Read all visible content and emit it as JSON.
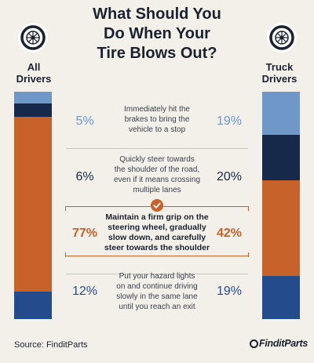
{
  "title_lines": [
    "What Should You",
    "Do When Your",
    "Tire Blows Out?"
  ],
  "left_group": {
    "lines": [
      "All",
      "Drivers"
    ],
    "icon": "tire-icon"
  },
  "right_group": {
    "lines": [
      "Truck",
      "Drivers"
    ],
    "icon": "tire-icon"
  },
  "chart_data": {
    "type": "bar",
    "stacked": true,
    "title": "What Should You Do When Your Tire Blows Out?",
    "categories": [
      "All Drivers",
      "Truck Drivers"
    ],
    "series": [
      {
        "name": "Immediately hit the brakes to bring the vehicle to a stop",
        "values": [
          5,
          19
        ],
        "color": "#6f98c9"
      },
      {
        "name": "Quickly steer towards the shoulder of the road, even if it means crossing multiple lanes",
        "values": [
          6,
          20
        ],
        "color": "#16294a"
      },
      {
        "name": "Maintain a firm grip on the steering wheel, gradually slow down, and carefully steer towards the shoulder",
        "values": [
          77,
          42
        ],
        "color": "#c7622a"
      },
      {
        "name": "Put your hazard lights on and continue driving slowly in the same lane until you reach an exit",
        "values": [
          12,
          19
        ],
        "color": "#244c8d"
      }
    ],
    "rows": [
      {
        "left_label": "5%",
        "right_label": "19%",
        "lines": [
          "Immediately hit the",
          "brakes to bring the",
          "vehicle to a stop"
        ],
        "highlight": false
      },
      {
        "left_label": "6%",
        "right_label": "20%",
        "lines": [
          "Quickly steer towards",
          "the shoulder of the road,",
          "even if it means crossing",
          "multiple lanes"
        ],
        "highlight": false
      },
      {
        "left_label": "77%",
        "right_label": "42%",
        "lines": [
          "Maintain a firm grip on the",
          "steering wheel, gradually",
          "slow down, and carefully",
          "steer towards the shoulder"
        ],
        "highlight": true
      },
      {
        "left_label": "12%",
        "right_label": "19%",
        "lines": [
          "Put your hazard lights",
          "on and continue driving",
          "slowly in the same lane",
          "until you reach an exit"
        ],
        "highlight": false
      }
    ]
  },
  "footer": {
    "source": "Source: FinditParts",
    "logo": "FinditParts"
  }
}
